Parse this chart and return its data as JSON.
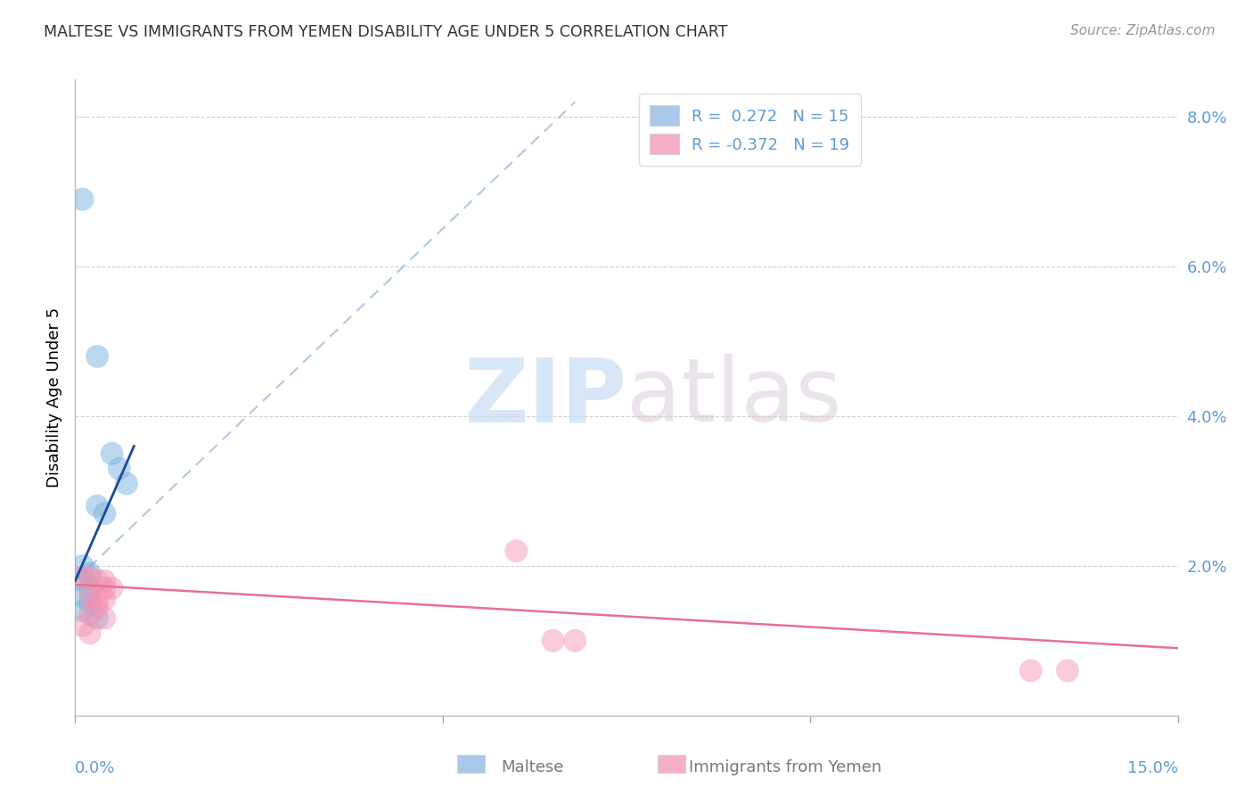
{
  "title": "MALTESE VS IMMIGRANTS FROM YEMEN DISABILITY AGE UNDER 5 CORRELATION CHART",
  "source": "Source: ZipAtlas.com",
  "ylabel": "Disability Age Under 5",
  "xlim": [
    0.0,
    0.15
  ],
  "ylim": [
    0.0,
    0.085
  ],
  "yticks": [
    0.0,
    0.02,
    0.04,
    0.06,
    0.08
  ],
  "ytick_labels": [
    "",
    "2.0%",
    "4.0%",
    "6.0%",
    "8.0%"
  ],
  "xtick_positions": [
    0.0,
    0.05,
    0.1,
    0.15
  ],
  "blue_scatter_color": "#7ab3e0",
  "pink_scatter_color": "#f48fb1",
  "trendline_blue_dashed_color": "#b0c8e0",
  "trendline_blue_solid_color": "#1a4a9a",
  "trendline_pink_solid_color": "#e87090",
  "maltese_points": [
    [
      0.001,
      0.069
    ],
    [
      0.003,
      0.048
    ],
    [
      0.005,
      0.035
    ],
    [
      0.006,
      0.033
    ],
    [
      0.007,
      0.031
    ],
    [
      0.003,
      0.028
    ],
    [
      0.004,
      0.027
    ],
    [
      0.001,
      0.02
    ],
    [
      0.002,
      0.019
    ],
    [
      0.001,
      0.018
    ],
    [
      0.002,
      0.017
    ],
    [
      0.001,
      0.016
    ],
    [
      0.002,
      0.015
    ],
    [
      0.001,
      0.014
    ],
    [
      0.003,
      0.013
    ]
  ],
  "yemen_points": [
    [
      0.001,
      0.0185
    ],
    [
      0.002,
      0.0185
    ],
    [
      0.003,
      0.018
    ],
    [
      0.004,
      0.018
    ],
    [
      0.004,
      0.017
    ],
    [
      0.005,
      0.017
    ],
    [
      0.002,
      0.016
    ],
    [
      0.003,
      0.0155
    ],
    [
      0.004,
      0.0155
    ],
    [
      0.003,
      0.0145
    ],
    [
      0.002,
      0.0135
    ],
    [
      0.004,
      0.013
    ],
    [
      0.06,
      0.022
    ],
    [
      0.065,
      0.01
    ],
    [
      0.068,
      0.01
    ],
    [
      0.13,
      0.006
    ],
    [
      0.135,
      0.006
    ],
    [
      0.001,
      0.012
    ],
    [
      0.002,
      0.011
    ]
  ],
  "blue_trendline_solid": [
    [
      0.0,
      0.018
    ],
    [
      0.008,
      0.036
    ]
  ],
  "blue_trendline_dashed": [
    [
      0.0,
      0.018
    ],
    [
      0.068,
      0.082
    ]
  ],
  "pink_trendline": [
    [
      0.0,
      0.0175
    ],
    [
      0.15,
      0.009
    ]
  ],
  "legend_label1": "R =  0.272   N = 15",
  "legend_label2": "R = -0.372   N = 19",
  "legend_color1": "#aac8ea",
  "legend_color2": "#f4b0c4",
  "watermark_text": "ZIPatlas",
  "watermark_color": "#d0e4f4",
  "bottom_label1": "Maltese",
  "bottom_label2": "Immigrants from Yemen"
}
